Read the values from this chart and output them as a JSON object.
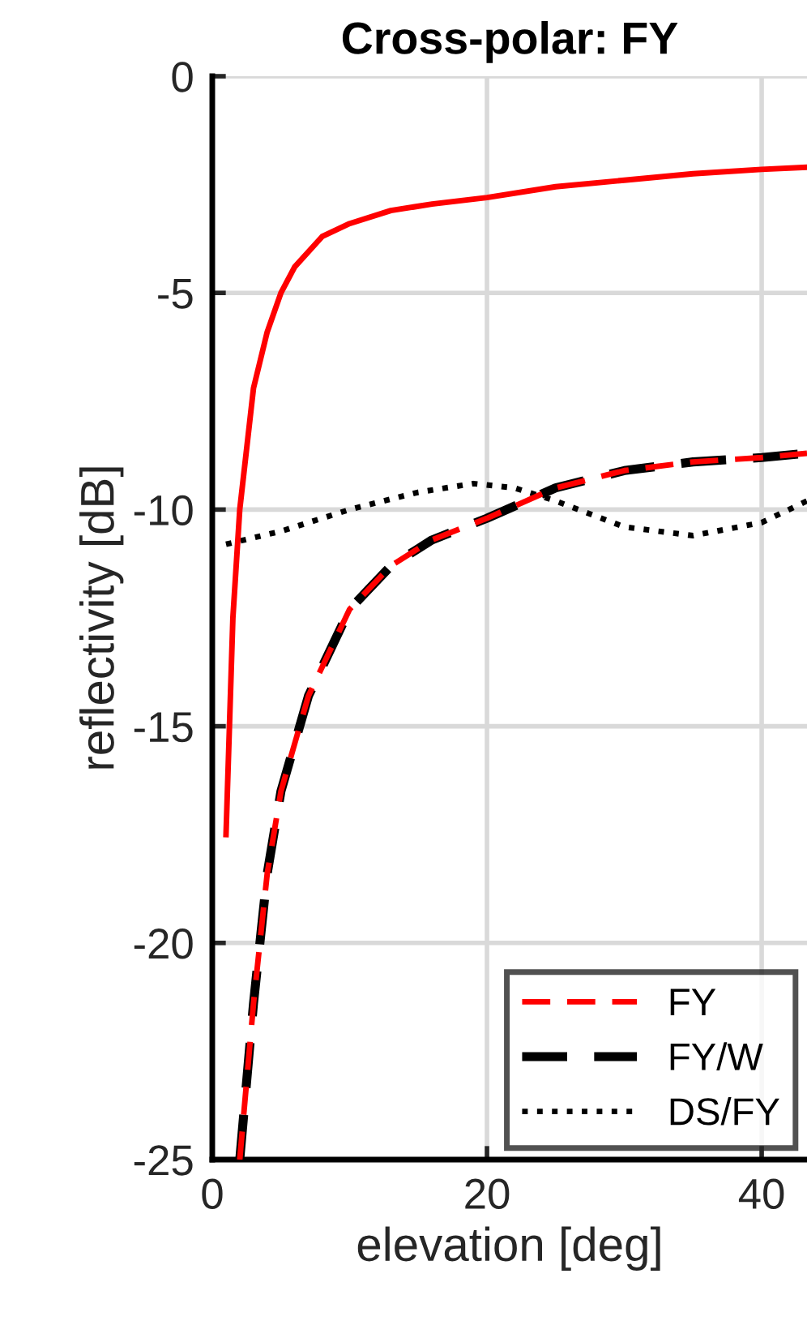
{
  "chart_data": {
    "type": "line",
    "title": "Cross-polar: FY",
    "xlabel": "elevation [deg]",
    "ylabel": "reflectivity [dB]",
    "xlim": [
      0,
      43.3
    ],
    "xticks": [
      0,
      20,
      40
    ],
    "ylim": [
      -25,
      0
    ],
    "yticks": [
      0,
      -5,
      -10,
      -15,
      -20,
      -25
    ],
    "grid": true,
    "legend": "bottom right",
    "series": [
      {
        "color": "#ff0000",
        "line_style": "solid",
        "x": [
          1,
          1.5,
          2,
          3,
          4,
          5,
          6,
          8,
          10,
          13,
          16,
          20,
          25,
          30,
          35,
          40,
          43.3
        ],
        "values": [
          -17.5,
          -12.5,
          -10,
          -7.2,
          -5.9,
          -5.0,
          -4.4,
          -3.7,
          -3.4,
          -3.1,
          -2.95,
          -2.8,
          -2.55,
          -2.4,
          -2.25,
          -2.15,
          -2.1
        ]
      },
      {
        "name": "FY",
        "color": "#ff0000",
        "line_style": "dashed",
        "x": [
          2,
          3,
          4,
          5,
          7,
          10,
          13,
          16,
          20,
          25,
          30,
          35,
          40,
          43.3
        ],
        "values": [
          -25,
          -21.4,
          -18.4,
          -16.5,
          -14.3,
          -12.3,
          -11.3,
          -10.7,
          -10.2,
          -9.5,
          -9.1,
          -8.9,
          -8.8,
          -8.7
        ]
      },
      {
        "name": "FY/W",
        "color": "#000000",
        "line_style": "dashed",
        "x": [
          2,
          3,
          4,
          5,
          7,
          10,
          13,
          16,
          20,
          25,
          30,
          35,
          40,
          43.3
        ],
        "values": [
          -25,
          -21.4,
          -18.4,
          -16.5,
          -14.3,
          -12.3,
          -11.3,
          -10.7,
          -10.2,
          -9.5,
          -9.1,
          -8.9,
          -8.8,
          -8.7
        ]
      },
      {
        "name": "DS/FY",
        "color": "#000000",
        "line_style": "dotted",
        "x": [
          1,
          5,
          10,
          15,
          19,
          22,
          25,
          30,
          35,
          40,
          43.3
        ],
        "values": [
          -10.8,
          -10.5,
          -10.0,
          -9.6,
          -9.4,
          -9.5,
          -9.8,
          -10.4,
          -10.6,
          -10.3,
          -9.8
        ]
      }
    ]
  }
}
